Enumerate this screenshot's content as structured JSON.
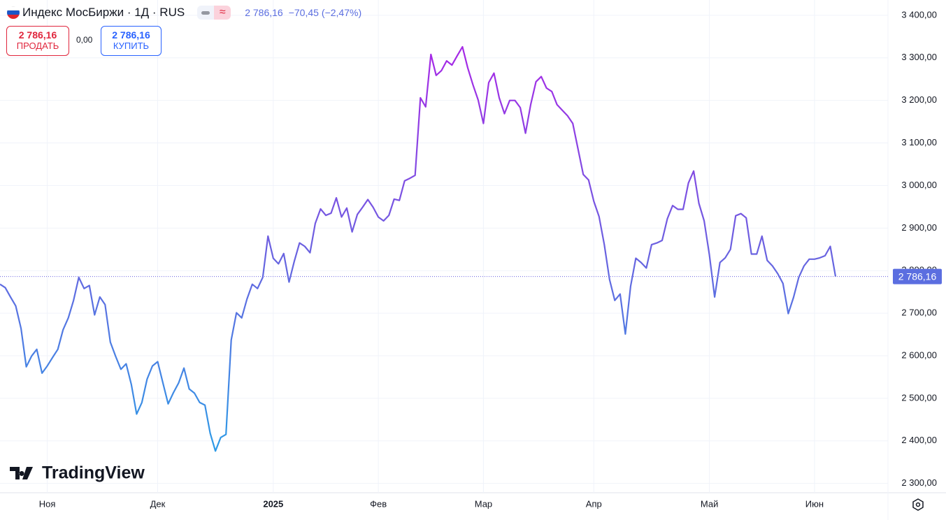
{
  "chart_data": {
    "type": "line",
    "title": "Индекс МосБиржи · 1Д · RUS",
    "quote": {
      "price": "2 786,16",
      "change": "−70,45",
      "change_pct": "(−2,47%)"
    },
    "sell": {
      "price": "2 786,16",
      "label": "ПРОДАТЬ"
    },
    "spread": "0,00",
    "buy": {
      "price": "2 786,16",
      "label": "КУПИТЬ"
    },
    "last_price_label": "2 786,16",
    "brand": "TradingView",
    "categories": [
      null,
      null,
      null,
      null,
      null,
      null,
      null,
      null,
      null,
      "Ноя",
      null,
      null,
      null,
      null,
      null,
      null,
      null,
      null,
      null,
      null,
      null,
      null,
      null,
      null,
      null,
      null,
      null,
      null,
      null,
      null,
      "Дек",
      null,
      null,
      null,
      null,
      null,
      null,
      null,
      null,
      null,
      null,
      null,
      null,
      null,
      null,
      null,
      null,
      null,
      null,
      null,
      null,
      null,
      "2025",
      null,
      null,
      null,
      null,
      null,
      null,
      null,
      null,
      null,
      null,
      null,
      null,
      null,
      null,
      null,
      null,
      null,
      null,
      null,
      "Фев",
      null,
      null,
      null,
      null,
      null,
      null,
      null,
      null,
      null,
      null,
      null,
      null,
      null,
      null,
      null,
      null,
      null,
      null,
      null,
      "Мар",
      null,
      null,
      null,
      null,
      null,
      null,
      null,
      null,
      null,
      null,
      null,
      null,
      null,
      null,
      null,
      null,
      null,
      null,
      null,
      null,
      "Апр",
      null,
      null,
      null,
      null,
      null,
      null,
      null,
      null,
      null,
      null,
      null,
      null,
      null,
      null,
      null,
      null,
      null,
      null,
      null,
      null,
      null,
      "Май",
      null,
      null,
      null,
      null,
      null,
      null,
      null,
      null,
      null,
      null,
      null,
      null,
      null,
      null,
      null,
      null,
      null,
      null,
      null,
      "Июн",
      null,
      null,
      null,
      null
    ],
    "values": [
      2768,
      2760,
      2738,
      2717,
      2664,
      2574,
      2599,
      2615,
      2559,
      2576,
      2596,
      2615,
      2661,
      2689,
      2730,
      2784,
      2758,
      2765,
      2696,
      2738,
      2720,
      2632,
      2599,
      2568,
      2581,
      2532,
      2463,
      2490,
      2545,
      2576,
      2586,
      2536,
      2487,
      2513,
      2536,
      2571,
      2522,
      2512,
      2490,
      2484,
      2418,
      2376,
      2408,
      2415,
      2637,
      2701,
      2689,
      2733,
      2768,
      2758,
      2784,
      2881,
      2829,
      2816,
      2840,
      2773,
      2822,
      2865,
      2857,
      2842,
      2911,
      2945,
      2930,
      2935,
      2971,
      2926,
      2947,
      2891,
      2932,
      2949,
      2967,
      2949,
      2926,
      2917,
      2930,
      2968,
      2965,
      3011,
      3017,
      3024,
      3206,
      3185,
      3308,
      3259,
      3270,
      3293,
      3283,
      3305,
      3326,
      3277,
      3237,
      3201,
      3146,
      3242,
      3264,
      3206,
      3169,
      3200,
      3200,
      3183,
      3123,
      3191,
      3244,
      3256,
      3229,
      3221,
      3190,
      3177,
      3164,
      3146,
      3086,
      3026,
      3013,
      2963,
      2927,
      2861,
      2779,
      2730,
      2745,
      2651,
      2763,
      2829,
      2819,
      2806,
      2861,
      2865,
      2871,
      2922,
      2953,
      2944,
      2944,
      3006,
      3034,
      2958,
      2917,
      2837,
      2738,
      2819,
      2830,
      2850,
      2929,
      2934,
      2924,
      2839,
      2839,
      2881,
      2824,
      2811,
      2793,
      2770,
      2699,
      2737,
      2784,
      2811,
      2827,
      2827,
      2830,
      2835,
      2857,
      2786.16
    ],
    "gradient": [
      "#a52ae6",
      "#6a62e0",
      "#2e9ae6"
    ],
    "ylim": [
      2278,
      3436
    ],
    "yticks": [
      {
        "value": 2300,
        "label": "2 300,00"
      },
      {
        "value": 2400,
        "label": "2 400,00"
      },
      {
        "value": 2500,
        "label": "2 500,00"
      },
      {
        "value": 2600,
        "label": "2 600,00"
      },
      {
        "value": 2700,
        "label": "2 700,00"
      },
      {
        "value": 2800,
        "label": "2 800,00"
      },
      {
        "value": 2900,
        "label": "2 900,00"
      },
      {
        "value": 3000,
        "label": "3 000,00"
      },
      {
        "value": 3100,
        "label": "3 100,00"
      },
      {
        "value": 3200,
        "label": "3 200,00"
      },
      {
        "value": 3300,
        "label": "3 300,00"
      },
      {
        "value": 3400,
        "label": "3 400,00"
      }
    ],
    "grid": true
  }
}
